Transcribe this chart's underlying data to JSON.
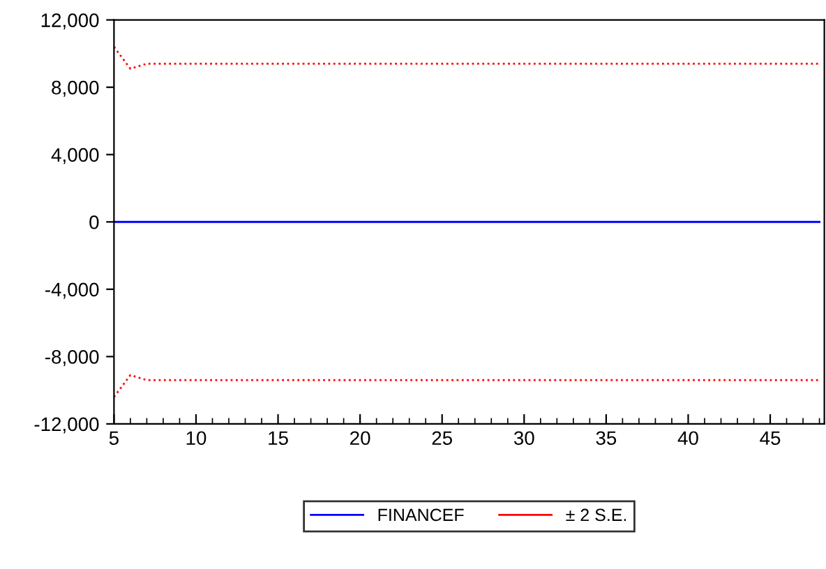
{
  "chart_data": {
    "type": "line",
    "x": [
      5,
      6,
      7,
      8,
      48
    ],
    "series": [
      {
        "name": "FINANCEF",
        "color": "#0000ff",
        "values": [
          0,
          0,
          0,
          0,
          0
        ],
        "line_style": "solid"
      },
      {
        "name": "± 2 S.E.",
        "color": "#ff0000",
        "values": [
          10400,
          9100,
          9400,
          9400,
          9400
        ],
        "line_style": "dotted"
      },
      {
        "color": "#ff0000",
        "values": [
          -10400,
          -9100,
          -9400,
          -9400,
          -9400
        ],
        "line_style": "dotted"
      }
    ],
    "xlim": [
      5,
      48.3
    ],
    "xticks": [
      5,
      10,
      15,
      20,
      25,
      30,
      35,
      40,
      45
    ],
    "ylim": [
      -12000,
      12000
    ],
    "yticks": [
      {
        "value": -12000,
        "label": "-12,000"
      },
      {
        "value": -8000,
        "label": "-8,000"
      },
      {
        "value": -4000,
        "label": "-4,000"
      },
      0,
      {
        "value": 4000,
        "label": "4,000"
      },
      {
        "value": 8000,
        "label": "8,000"
      },
      {
        "value": 12000,
        "label": "12,000"
      }
    ],
    "grid": false,
    "legend": "bottom",
    "marker": "none"
  }
}
